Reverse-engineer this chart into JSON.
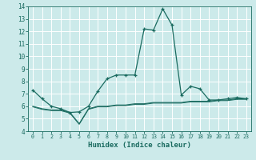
{
  "xlabel": "Humidex (Indice chaleur)",
  "background_color": "#cceaea",
  "grid_color": "#ffffff",
  "line_color": "#1a6b60",
  "x_values": [
    0,
    1,
    2,
    3,
    4,
    5,
    6,
    7,
    8,
    9,
    10,
    11,
    12,
    13,
    14,
    15,
    16,
    17,
    18,
    19,
    20,
    21,
    22,
    23
  ],
  "line1_y": [
    7.3,
    6.6,
    6.0,
    5.8,
    5.5,
    5.55,
    6.0,
    7.2,
    8.2,
    8.5,
    8.5,
    8.5,
    12.2,
    12.1,
    13.8,
    12.5,
    6.9,
    7.6,
    7.4,
    6.5,
    6.5,
    6.6,
    6.7,
    6.6
  ],
  "line2_y": [
    6.0,
    5.8,
    5.7,
    5.7,
    5.5,
    4.6,
    5.8,
    6.0,
    6.0,
    6.1,
    6.1,
    6.2,
    6.2,
    6.3,
    6.3,
    6.3,
    6.3,
    6.4,
    6.4,
    6.4,
    6.5,
    6.5,
    6.6,
    6.6
  ],
  "line3_y": [
    5.95,
    5.75,
    5.65,
    5.65,
    5.45,
    4.55,
    5.75,
    5.95,
    5.95,
    6.05,
    6.05,
    6.15,
    6.15,
    6.25,
    6.25,
    6.25,
    6.25,
    6.35,
    6.35,
    6.35,
    6.45,
    6.45,
    6.55,
    6.55
  ],
  "ylim": [
    4,
    14
  ],
  "xlim": [
    -0.5,
    23.5
  ],
  "yticks": [
    4,
    5,
    6,
    7,
    8,
    9,
    10,
    11,
    12,
    13,
    14
  ],
  "xticks": [
    0,
    1,
    2,
    3,
    4,
    5,
    6,
    7,
    8,
    9,
    10,
    11,
    12,
    13,
    14,
    15,
    16,
    17,
    18,
    19,
    20,
    21,
    22,
    23
  ]
}
